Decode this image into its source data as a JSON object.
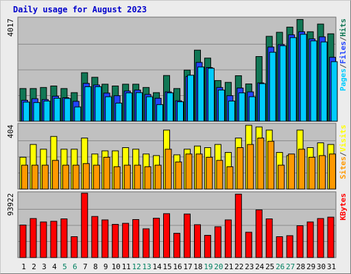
{
  "title": "Daily usage for August 2023",
  "colors": {
    "hits": "#00ccff",
    "files": "#2244ff",
    "pages": "#117755",
    "visits": "#ffff00",
    "sites": "#ff9900",
    "kbytes": "#ff0000",
    "panel_bg": "#c0c0c0",
    "weekend_label": "#008060",
    "weekday_label": "#000000"
  },
  "chart_data": [
    {
      "type": "bar",
      "title": "Daily usage for August 2023",
      "categories": [
        "1",
        "2",
        "3",
        "4",
        "5",
        "6",
        "7",
        "8",
        "9",
        "10",
        "11",
        "12",
        "13",
        "14",
        "15",
        "16",
        "17",
        "18",
        "19",
        "20",
        "21",
        "22",
        "23",
        "24",
        "25",
        "26",
        "27",
        "28",
        "29",
        "30",
        "31"
      ],
      "weekend_days": [
        "5",
        "6",
        "12",
        "13",
        "19",
        "20",
        "26",
        "27"
      ],
      "ylim": [
        0,
        4017
      ],
      "max_label": "4017",
      "legend": [
        {
          "label": "Pages",
          "color": "#00ccff"
        },
        {
          "label": "/",
          "color": "#444444"
        },
        {
          "label": "Files",
          "color": "#2244ff"
        },
        {
          "label": "/",
          "color": "#444444"
        },
        {
          "label": "Hits",
          "color": "#117755"
        }
      ],
      "series": [
        {
          "name": "Pages",
          "color": "#117755",
          "values": [
            1280,
            1280,
            1320,
            1380,
            1280,
            1120,
            1900,
            1720,
            1450,
            1380,
            1450,
            1450,
            1320,
            1120,
            1790,
            1280,
            2000,
            2780,
            2470,
            1590,
            1520,
            1780,
            1460,
            2530,
            3320,
            3480,
            3680,
            3980,
            3500,
            3800,
            3420
          ]
        },
        {
          "name": "Files",
          "color": "#2244ff",
          "values": [
            820,
            880,
            850,
            980,
            920,
            780,
            1480,
            1420,
            1100,
            1000,
            1180,
            1220,
            1050,
            900,
            1150,
            800,
            1750,
            2300,
            2100,
            1320,
            1000,
            1300,
            1150,
            1500,
            2900,
            3000,
            3380,
            3500,
            3220,
            3300,
            2500
          ]
        },
        {
          "name": "Hits",
          "color": "#00ccff",
          "values": [
            750,
            730,
            790,
            900,
            890,
            560,
            1350,
            1350,
            960,
            710,
            1110,
            1120,
            960,
            650,
            1110,
            760,
            1800,
            2120,
            2070,
            1220,
            790,
            1110,
            960,
            1470,
            2700,
            2950,
            3270,
            3400,
            3140,
            3100,
            2330
          ]
        }
      ]
    },
    {
      "type": "bar",
      "categories": [
        "1",
        "2",
        "3",
        "4",
        "5",
        "6",
        "7",
        "8",
        "9",
        "10",
        "11",
        "12",
        "13",
        "14",
        "15",
        "16",
        "17",
        "18",
        "19",
        "20",
        "21",
        "22",
        "23",
        "24",
        "25",
        "26",
        "27",
        "28",
        "29",
        "30",
        "31"
      ],
      "ylim": [
        0,
        404
      ],
      "max_label": "404",
      "legend": [
        {
          "label": "Sites",
          "color": "#ff9900"
        },
        {
          "label": "/",
          "color": "#444444"
        },
        {
          "label": "Visits",
          "color": "#ffff00"
        }
      ],
      "series": [
        {
          "name": "Visits",
          "color": "#ffff00",
          "values": [
            200,
            280,
            250,
            330,
            250,
            250,
            320,
            220,
            240,
            240,
            260,
            250,
            220,
            210,
            370,
            215,
            250,
            270,
            260,
            280,
            230,
            320,
            400,
            390,
            370,
            230,
            210,
            370,
            260,
            290,
            280
          ]
        },
        {
          "name": "Sites",
          "color": "#ff9900",
          "values": [
            150,
            150,
            150,
            180,
            150,
            150,
            160,
            150,
            200,
            140,
            150,
            150,
            140,
            150,
            250,
            170,
            220,
            220,
            200,
            180,
            140,
            260,
            280,
            320,
            300,
            150,
            220,
            250,
            200,
            210,
            220
          ]
        }
      ]
    },
    {
      "type": "bar",
      "categories": [
        "1",
        "2",
        "3",
        "4",
        "5",
        "6",
        "7",
        "8",
        "9",
        "10",
        "11",
        "12",
        "13",
        "14",
        "15",
        "16",
        "17",
        "18",
        "19",
        "20",
        "21",
        "22",
        "23",
        "24",
        "25",
        "26",
        "27",
        "28",
        "29",
        "30",
        "31"
      ],
      "ylim": [
        0,
        93922
      ],
      "max_label": "93922",
      "legend": [
        {
          "label": "KBytes",
          "color": "#ff0000"
        }
      ],
      "series": [
        {
          "name": "KBytes",
          "color": "#ff0000",
          "values": [
            47500,
            57000,
            52000,
            53000,
            56500,
            30500,
            93900,
            60000,
            55000,
            48500,
            50000,
            55500,
            42000,
            57500,
            64000,
            35500,
            63500,
            48000,
            32500,
            45000,
            55000,
            92500,
            37000,
            69500,
            56500,
            30500,
            32000,
            46500,
            52000,
            57000,
            59000
          ]
        }
      ]
    }
  ]
}
